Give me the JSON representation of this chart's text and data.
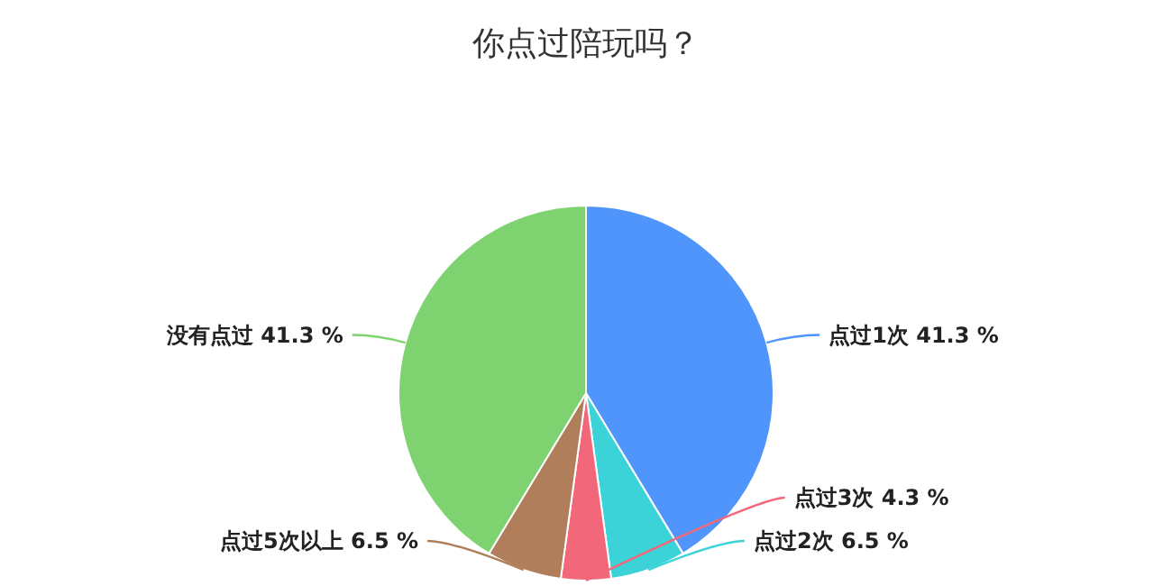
{
  "chart_data": {
    "type": "pie",
    "title": "你点过陪玩吗？",
    "categories": [
      "点过1次",
      "点过2次",
      "点过3次",
      "点过5次以上",
      "没有点过"
    ],
    "values": [
      41.3,
      6.5,
      4.3,
      6.5,
      41.3
    ],
    "value_labels": [
      "41.3 %",
      "6.5 %",
      "4.3 %",
      "6.5 %",
      "41.3 %"
    ],
    "colors": [
      "#4f95fb",
      "#3cd3d8",
      "#f2687a",
      "#b07e5a",
      "#7ed26f"
    ]
  }
}
